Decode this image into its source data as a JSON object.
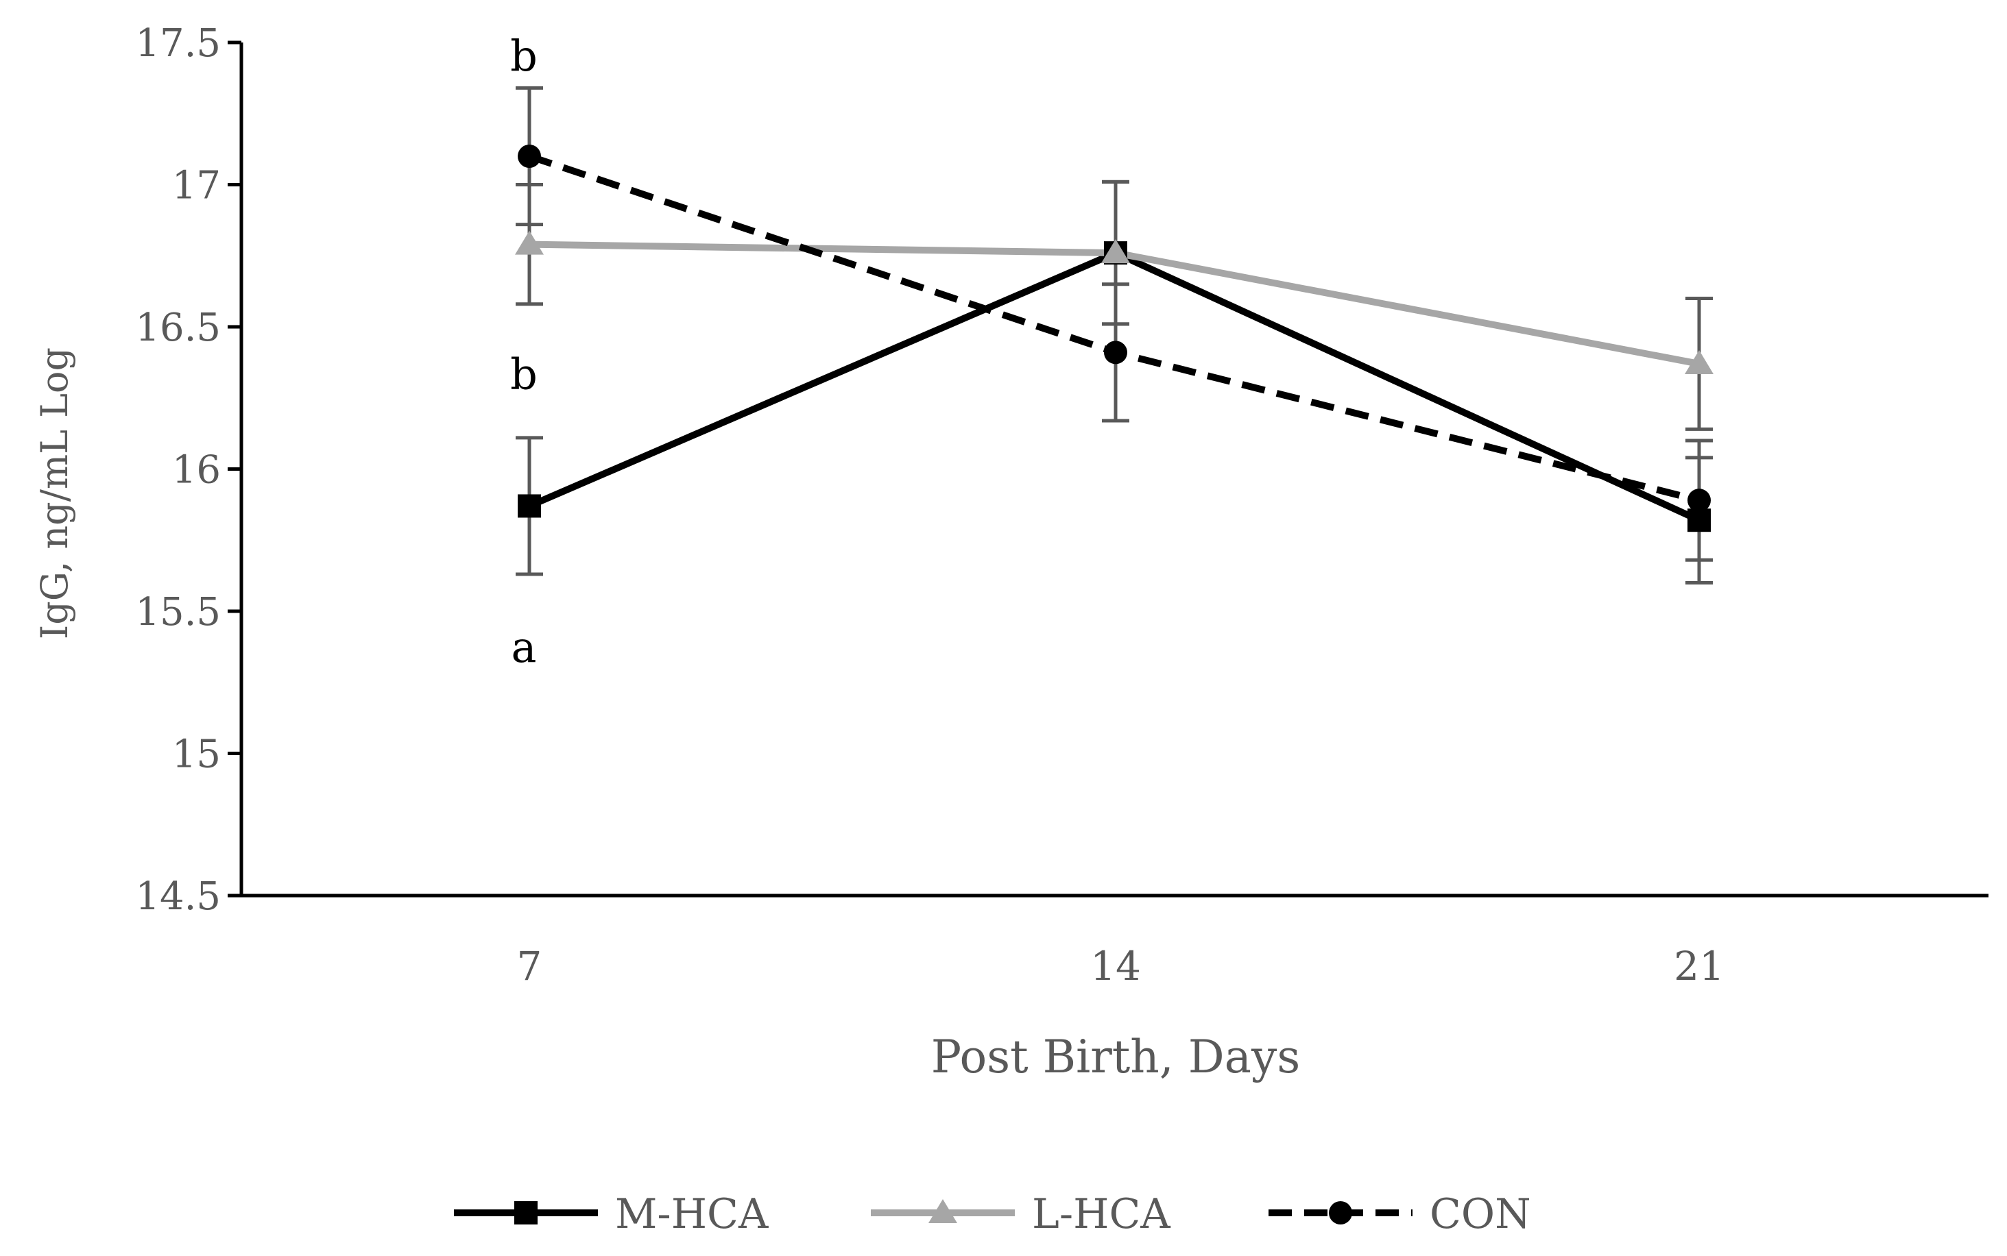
{
  "chart_data": {
    "type": "line",
    "title": "",
    "xlabel": "Post Birth, Days",
    "ylabel": "IgG, ng/mL Log",
    "categories": [
      "7",
      "14",
      "21"
    ],
    "ylim": [
      14.5,
      17.5
    ],
    "yticks": [
      "14.5",
      "15",
      "15.5",
      "16",
      "16.5",
      "17",
      "17.5"
    ],
    "grid": false,
    "legend_position": "bottom",
    "series": [
      {
        "name": "M-HCA",
        "values": [
          15.87,
          16.76,
          15.82
        ],
        "errors": [
          0.24,
          0.25,
          0.22
        ],
        "color": "#000000",
        "dash": "solid",
        "marker": "square"
      },
      {
        "name": "L-HCA",
        "values": [
          16.79,
          16.76,
          16.37
        ],
        "errors": [
          0.21,
          0.25,
          0.23
        ],
        "color": "#a6a6a6",
        "dash": "solid",
        "marker": "triangle"
      },
      {
        "name": "CON",
        "values": [
          17.1,
          16.41,
          15.89
        ],
        "errors": [
          0.24,
          0.24,
          0.21
        ],
        "color": "#000000",
        "dash": "dashed",
        "marker": "circle"
      }
    ],
    "annotations": [
      {
        "text": "b",
        "category": "7",
        "value": 17.45
      },
      {
        "text": "b",
        "category": "7",
        "value": 16.33
      },
      {
        "text": "a",
        "category": "7",
        "value": 15.37
      }
    ],
    "colors": {
      "axis": "#000000",
      "tick_text": "#595959",
      "error_bar": "#595959",
      "annotation_text": "#000000"
    }
  }
}
